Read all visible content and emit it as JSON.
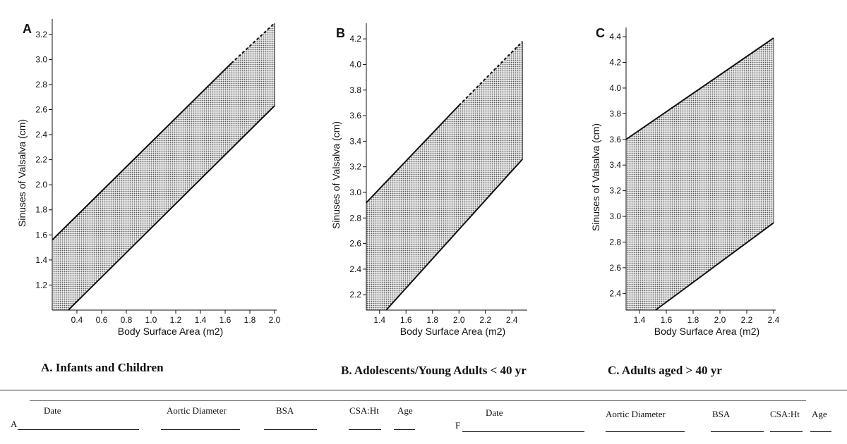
{
  "chart_data": [
    {
      "type": "area",
      "panel": "A",
      "title": "A. Infants and Children",
      "xlabel": "Body Surface Area (m2)",
      "ylabel": "Sinuses of Valsalva (cm)",
      "xlim": [
        0.2,
        2.0
      ],
      "ylim": [
        1.0,
        3.3
      ],
      "xticks": [
        0.4,
        0.6,
        0.8,
        1.0,
        1.2,
        1.4,
        1.6,
        1.8,
        2.0
      ],
      "yticks": [
        1.2,
        1.4,
        1.6,
        1.8,
        2.0,
        2.2,
        2.4,
        2.6,
        2.8,
        3.0,
        3.2
      ],
      "xtick_labels": [
        "0.4",
        "0.6",
        "0.8",
        "1.0",
        "1.2",
        "1.4",
        "1.6",
        "1.8",
        "2.0"
      ],
      "ytick_labels": [
        "1.2",
        "1.4",
        "1.6",
        "1.8",
        "2.0",
        "2.2",
        "2.4",
        "2.6",
        "2.8",
        "3.0",
        "3.2"
      ],
      "upper": {
        "x": [
          0.2,
          1.65
        ],
        "y": [
          1.56,
          2.97
        ]
      },
      "upper_dashed": {
        "x": [
          1.65,
          2.0
        ],
        "y": [
          2.97,
          3.29
        ]
      },
      "lower": {
        "x": [
          0.2,
          0.33,
          2.0
        ],
        "y": [
          1.0,
          1.0,
          2.63
        ]
      }
    },
    {
      "type": "area",
      "panel": "B",
      "title": "B. Adolescents/Young Adults < 40 yr",
      "xlabel": "Body Surface Area (m2)",
      "ylabel": "Sinuses of Valsalva (cm)",
      "xlim": [
        1.3,
        2.5
      ],
      "ylim": [
        2.08,
        4.3
      ],
      "xticks": [
        1.4,
        1.6,
        1.8,
        2.0,
        2.2,
        2.4
      ],
      "yticks": [
        2.2,
        2.4,
        2.6,
        2.8,
        3.0,
        3.2,
        3.4,
        3.6,
        3.8,
        4.0,
        4.2
      ],
      "xtick_labels": [
        "1.4",
        "1.6",
        "1.8",
        "2.0",
        "2.2",
        "2.4"
      ],
      "ytick_labels": [
        "2.2",
        "2.4",
        "2.6",
        "2.8",
        "3.0",
        "3.2",
        "3.4",
        "3.6",
        "3.8",
        "4.0",
        "4.2"
      ],
      "upper": {
        "x": [
          1.3,
          2.0
        ],
        "y": [
          2.92,
          3.68
        ]
      },
      "upper_dashed": {
        "x": [
          2.0,
          2.48
        ],
        "y": [
          3.68,
          4.18
        ]
      },
      "lower": {
        "x": [
          1.3,
          1.45,
          2.48
        ],
        "y": [
          2.08,
          2.08,
          3.26
        ]
      }
    },
    {
      "type": "area",
      "panel": "C",
      "title": "C. Adults aged > 40 yr",
      "xlabel": "Body Surface Area (m2)",
      "ylabel": "Sinuses of Valsalva (cm)",
      "xlim": [
        1.3,
        2.4
      ],
      "ylim": [
        2.27,
        4.45
      ],
      "xticks": [
        1.4,
        1.6,
        1.8,
        2.0,
        2.2,
        2.4
      ],
      "yticks": [
        2.4,
        2.6,
        2.8,
        3.0,
        3.2,
        3.4,
        3.6,
        3.8,
        4.0,
        4.2,
        4.4
      ],
      "xtick_labels": [
        "1.4",
        "1.6",
        "1.8",
        "2.0",
        "2.2",
        "2.4"
      ],
      "ytick_labels": [
        "2.4",
        "2.6",
        "2.8",
        "3.0",
        "3.2",
        "3.4",
        "3.6",
        "3.8",
        "4.0",
        "4.2",
        "4.4"
      ],
      "upper": {
        "x": [
          1.3,
          2.4
        ],
        "y": [
          3.6,
          4.39
        ]
      },
      "upper_dashed": null,
      "lower": {
        "x": [
          1.3,
          1.52,
          2.4
        ],
        "y": [
          2.27,
          2.27,
          2.95
        ]
      }
    }
  ],
  "form": {
    "left": {
      "prefix": "A",
      "date": "Date",
      "aortic": "Aortic Diameter",
      "bsa": "BSA",
      "csa": "CSA:Ht",
      "age": "Age"
    },
    "right": {
      "prefix": "F",
      "date": "Date",
      "aortic": "Aortic Diameter",
      "bsa": "BSA",
      "csa": "CSA:Ht",
      "age": "Age"
    }
  }
}
